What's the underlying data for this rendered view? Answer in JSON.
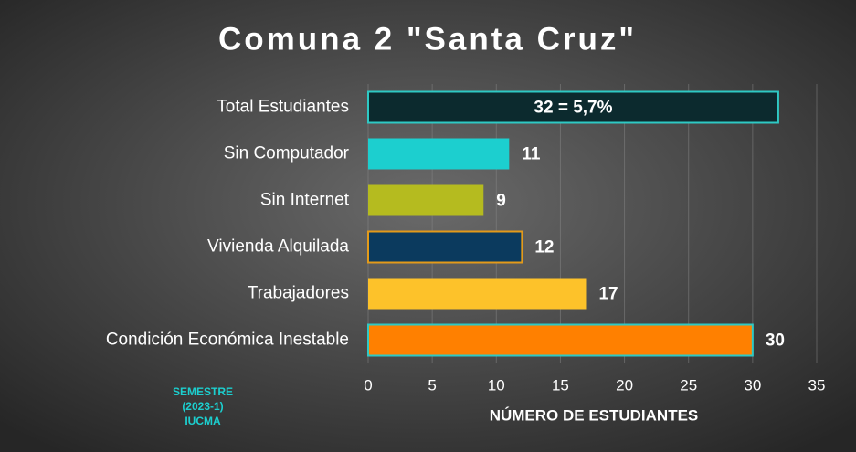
{
  "chart_data": {
    "type": "barh",
    "title": "Comuna 2 \"Santa Cruz\"",
    "categories": [
      "Total Estudiantes",
      "Sin Computador",
      "Sin Internet",
      "Vivienda Alquilada",
      "Trabajadores",
      "Condición Económica Inestable"
    ],
    "values": [
      32,
      11,
      9,
      12,
      17,
      30
    ],
    "value_labels": [
      "32 = 5,7%",
      "11",
      "9",
      "12",
      "17",
      "30"
    ],
    "colors": [
      "#0c2a2e",
      "#1ccfcf",
      "#b5bb1f",
      "#0b3a5e",
      "#fdc22a",
      "#ff8000"
    ],
    "edgecolors": [
      "#2ec9c4",
      null,
      null,
      "#e39a1a",
      null,
      "#2ec9c4"
    ],
    "xlim": [
      0,
      35
    ],
    "xticks": [
      0,
      5,
      10,
      15,
      20,
      25,
      30,
      35
    ],
    "grid": true,
    "xlabel": "NÚMERO DE ESTUDIANTES",
    "annotation": [
      "SEMESTRE",
      "(2023-1)",
      "IUCMA"
    ]
  }
}
